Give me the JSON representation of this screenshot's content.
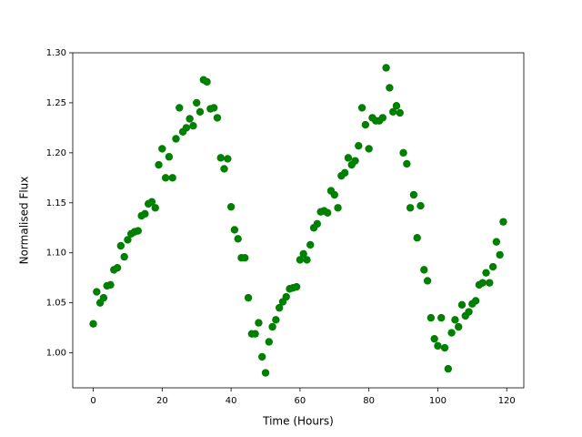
{
  "chart_data": {
    "type": "scatter",
    "color": "#008000",
    "x_label": "Time (Hours)",
    "y_label": "Normalised Flux",
    "x": [
      0,
      1,
      2,
      3,
      4,
      5,
      6,
      7,
      8,
      9,
      10,
      11,
      12,
      13,
      14,
      15,
      16,
      17,
      18,
      19,
      20,
      21,
      22,
      23,
      24,
      25,
      26,
      27,
      28,
      29,
      30,
      31,
      32,
      33,
      34,
      35,
      36,
      37,
      38,
      39,
      40,
      41,
      42,
      43,
      44,
      45,
      46,
      47,
      48,
      49,
      50,
      51,
      52,
      53,
      54,
      55,
      56,
      57,
      58,
      59,
      60,
      61,
      62,
      63,
      64,
      65,
      66,
      67,
      68,
      69,
      70,
      71,
      72,
      73,
      74,
      75,
      76,
      77,
      78,
      79,
      80,
      81,
      82,
      83,
      84,
      85,
      86,
      87,
      88,
      89,
      90,
      91,
      92,
      93,
      94,
      95,
      96,
      97,
      98,
      99,
      100,
      101,
      102,
      103,
      104,
      105,
      106,
      107,
      108,
      109,
      110,
      111,
      112,
      113,
      114,
      115,
      116,
      117,
      118,
      119
    ],
    "values": [
      1.029,
      1.061,
      1.05,
      1.055,
      1.067,
      1.068,
      1.083,
      1.085,
      1.107,
      1.096,
      1.113,
      1.119,
      1.121,
      1.122,
      1.137,
      1.139,
      1.149,
      1.151,
      1.145,
      1.188,
      1.204,
      1.175,
      1.196,
      1.175,
      1.214,
      1.245,
      1.221,
      1.225,
      1.234,
      1.227,
      1.25,
      1.241,
      1.273,
      1.271,
      1.244,
      1.245,
      1.235,
      1.195,
      1.184,
      1.194,
      1.146,
      1.123,
      1.114,
      1.095,
      1.095,
      1.055,
      1.019,
      1.019,
      1.03,
      0.996,
      0.98,
      1.011,
      1.026,
      1.033,
      1.045,
      1.051,
      1.056,
      1.064,
      1.065,
      1.066,
      1.093,
      1.099,
      1.093,
      1.108,
      1.125,
      1.129,
      1.141,
      1.142,
      1.14,
      1.162,
      1.158,
      1.145,
      1.177,
      1.18,
      1.195,
      1.188,
      1.192,
      1.207,
      1.245,
      1.228,
      1.204,
      1.235,
      1.232,
      1.232,
      1.235,
      1.285,
      1.265,
      1.241,
      1.247,
      1.24,
      1.2,
      1.189,
      1.145,
      1.158,
      1.115,
      1.147,
      1.083,
      1.072,
      1.035,
      1.014,
      1.007,
      1.035,
      1.005,
      0.984,
      1.02,
      1.033,
      1.026,
      1.048,
      1.037,
      1.041,
      1.049,
      1.052,
      1.068,
      1.07,
      1.08,
      1.07,
      1.086,
      1.111,
      1.098,
      1.131
    ],
    "xlim": [
      -5.95,
      124.95
    ],
    "ylim": [
      0.965,
      1.3
    ],
    "xticks": [
      0,
      20,
      40,
      60,
      80,
      100,
      120
    ],
    "yticks": [
      {
        "value": 1,
        "label": "1.00"
      },
      {
        "value": 1.05,
        "label": "1.05"
      },
      {
        "value": 1.1,
        "label": "1.10"
      },
      {
        "value": 1.15,
        "label": "1.15"
      },
      {
        "value": 1.2,
        "label": "1.20"
      },
      {
        "value": 1.25,
        "label": "1.25"
      },
      {
        "value": 1.3,
        "label": "1.30"
      }
    ]
  }
}
